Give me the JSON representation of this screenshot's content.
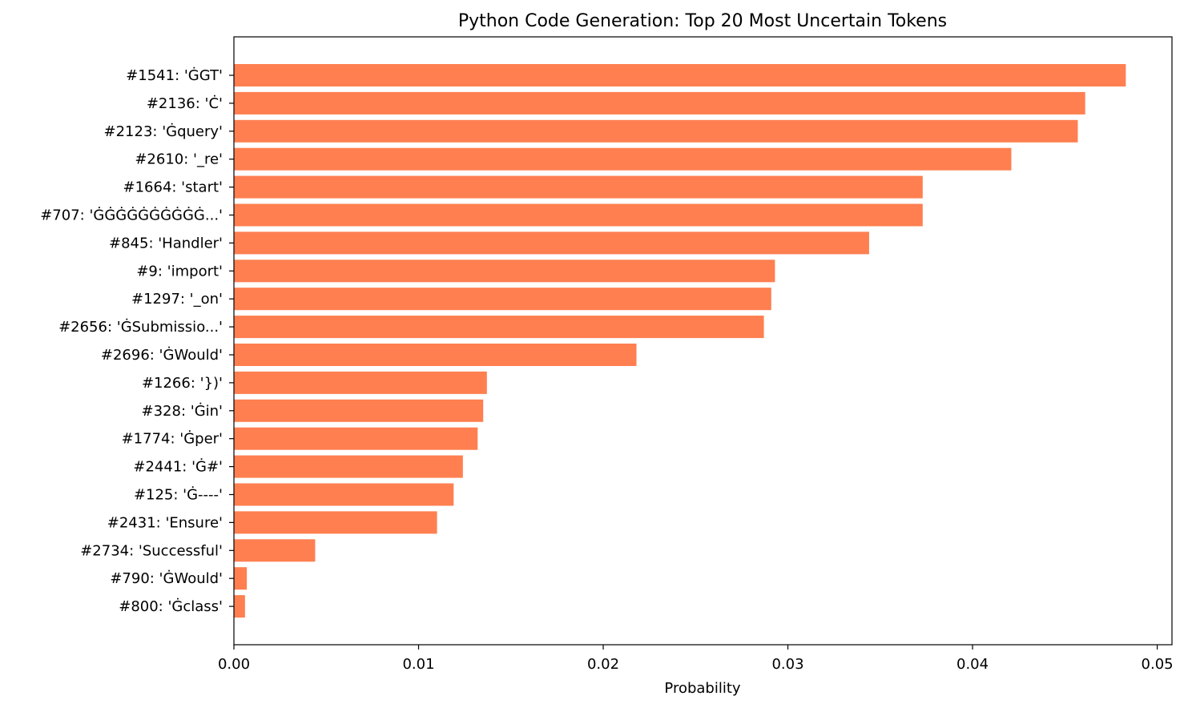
{
  "chart_data": {
    "type": "bar",
    "orientation": "horizontal",
    "title": "Python Code Generation: Top 20 Most Uncertain Tokens",
    "xlabel": "Probability",
    "ylabel": "",
    "xlim": [
      0.0,
      0.0508
    ],
    "xticks": [
      0.0,
      0.01,
      0.02,
      0.03,
      0.04,
      0.05
    ],
    "xtick_labels": [
      "0.00",
      "0.01",
      "0.02",
      "0.03",
      "0.04",
      "0.05"
    ],
    "grid": false,
    "bar_color": "#ff7f50",
    "categories": [
      "#1541: 'ĠGT'",
      "#2136: 'Ċ'",
      "#2123: 'Ġquery'",
      "#2610: '_re'",
      "#1664: 'start'",
      "#707: 'ĠĠĠĠĠĠĠĠĠĠ...'",
      "#845: 'Handler'",
      "#9: 'import'",
      "#1297: '_on'",
      "#2656: 'ĠSubmissio...'",
      "#2696: 'ĠWould'",
      "#1266: '})'",
      "#328: 'Ġin'",
      "#1774: 'Ġper'",
      "#2441: 'Ġ#'",
      "#125: 'Ġ----'",
      "#2431: 'Ensure'",
      "#2734: 'Successful'",
      "#790: 'ĠWould'",
      "#800: 'Ġclass'"
    ],
    "values": [
      0.0483,
      0.0461,
      0.0457,
      0.0421,
      0.0373,
      0.0373,
      0.0344,
      0.0293,
      0.0291,
      0.0287,
      0.0218,
      0.0137,
      0.0135,
      0.0132,
      0.0124,
      0.0119,
      0.011,
      0.0044,
      0.0007,
      0.0006
    ]
  }
}
